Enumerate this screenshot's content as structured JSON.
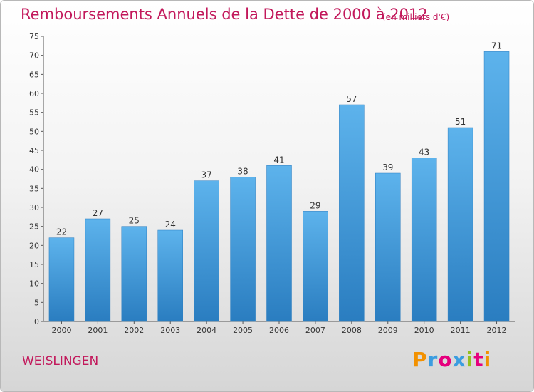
{
  "chart_data": {
    "type": "bar",
    "title": "Remboursements Annuels de la Dette de 2000 à 2012",
    "subtitle": "(en milliers d'€)",
    "categories": [
      "2000",
      "2001",
      "2002",
      "2003",
      "2004",
      "2005",
      "2006",
      "2007",
      "2008",
      "2009",
      "2010",
      "2011",
      "2012"
    ],
    "values": [
      22,
      27,
      25,
      24,
      37,
      38,
      41,
      29,
      57,
      39,
      43,
      51,
      71
    ],
    "ylim": [
      0,
      75
    ],
    "yticks": [
      0,
      5,
      10,
      15,
      20,
      25,
      30,
      35,
      40,
      45,
      50,
      55,
      60,
      65,
      70,
      75
    ],
    "grid": false,
    "xlabel": "",
    "ylabel": "",
    "bar_color": "#3f9de0"
  },
  "commune": "WEISLINGEN",
  "logo": {
    "text": "Proxiti",
    "colors": [
      "#f29100",
      "#3b9de0",
      "#e6007e",
      "#3b9de0",
      "#95c11f",
      "#e6007e",
      "#f29100"
    ]
  }
}
